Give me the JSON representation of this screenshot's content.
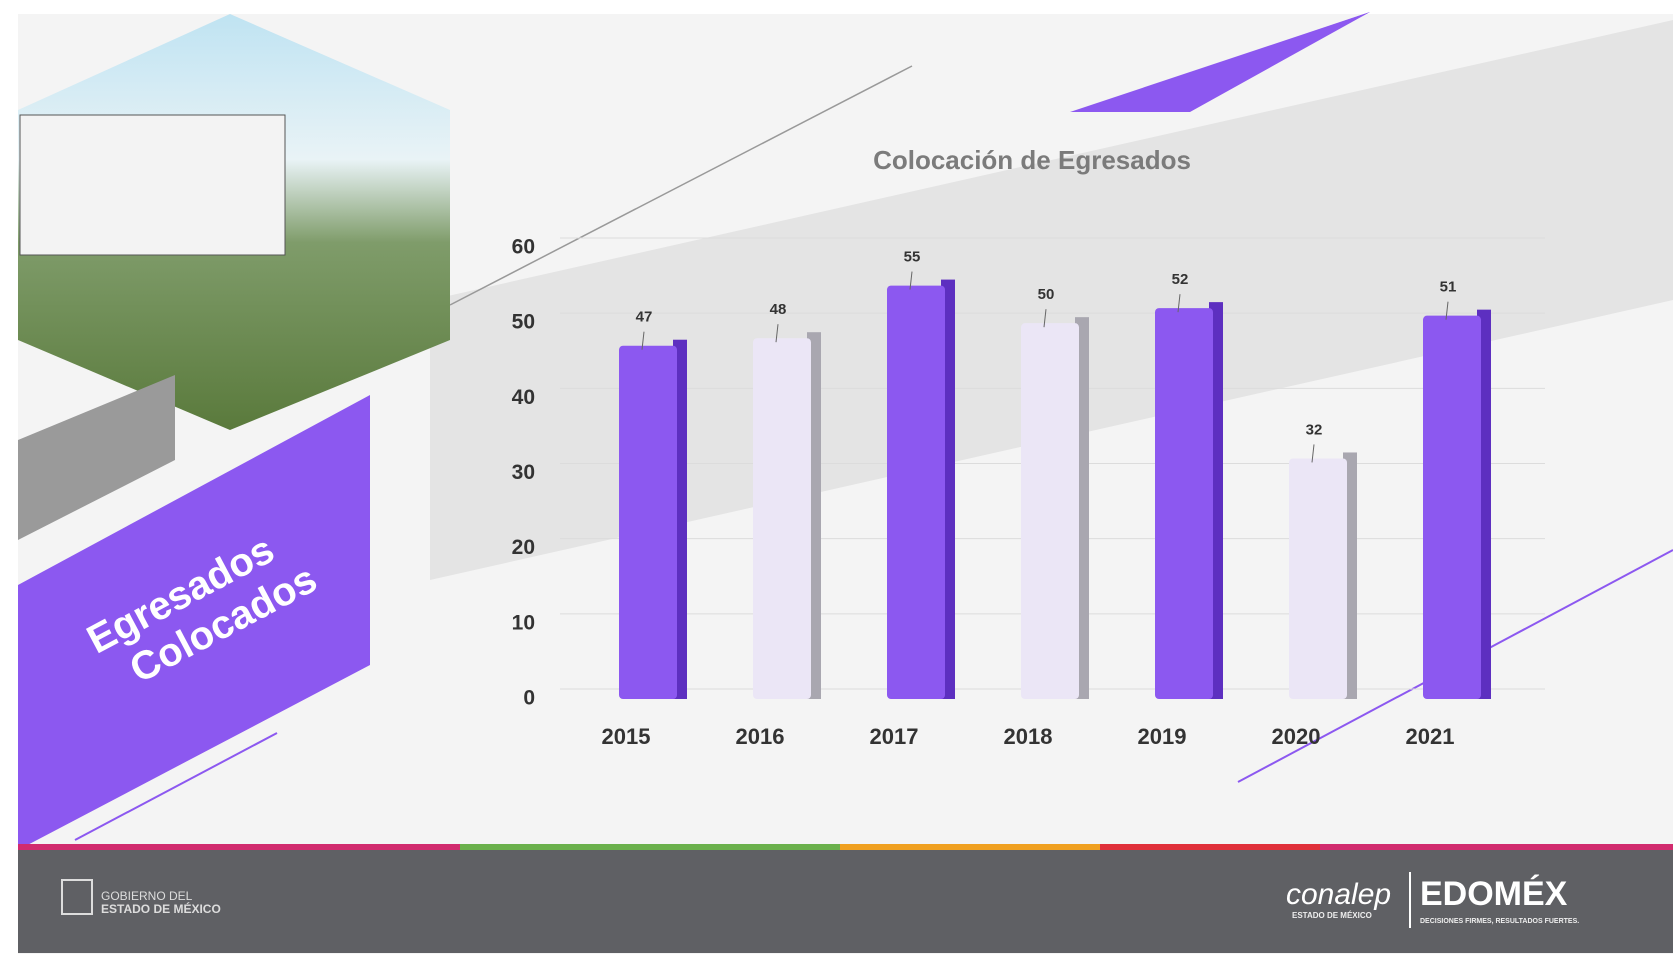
{
  "chart_data": {
    "type": "bar",
    "title": "Colocación de Egresados",
    "categories": [
      "2015",
      "2016",
      "2017",
      "2018",
      "2019",
      "2020",
      "2021"
    ],
    "values": [
      47,
      48,
      55,
      50,
      52,
      32,
      51
    ],
    "colors": [
      "#8c58f0",
      "#ebe6f6",
      "#8c58f0",
      "#ebe6f6",
      "#8c58f0",
      "#ebe6f6",
      "#8c58f0"
    ],
    "ylim": [
      0,
      60
    ],
    "yticks": [
      0,
      10,
      20,
      30,
      40,
      50,
      60
    ],
    "grid": true
  },
  "slide": {
    "heading": [
      "Egresados",
      "Colocados"
    ],
    "footer": {
      "government": [
        "GOBIERNO DEL",
        "ESTADO DE MÉXICO"
      ],
      "brand": "conalep",
      "brand_sub": "ESTADO DE MÉXICO",
      "state": "EDOMÉX",
      "slogan": "DECISIONES FIRMES, RESULTADOS FUERTES."
    }
  }
}
